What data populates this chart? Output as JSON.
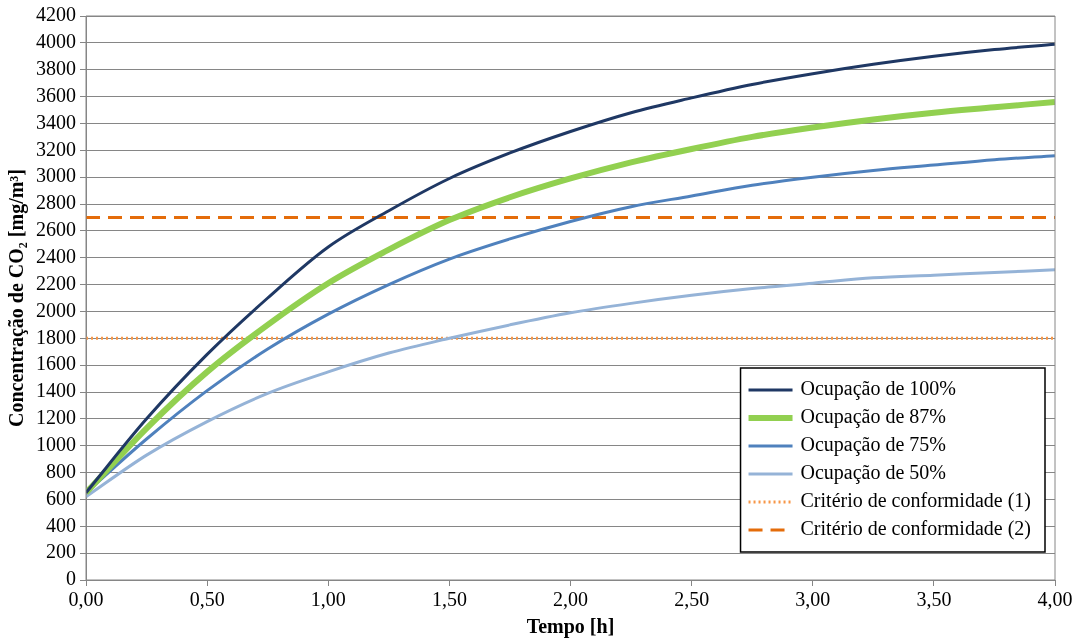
{
  "chart_data": {
    "type": "line",
    "xlabel": "Tempo [h]",
    "ylabel": "Concentração de CO₂ [mg/m³]",
    "x": [
      0,
      0.25,
      0.5,
      0.75,
      1,
      1.25,
      1.5,
      1.75,
      2,
      2.25,
      2.5,
      2.75,
      3,
      3.25,
      3.5,
      3.75,
      4
    ],
    "series": [
      {
        "name": "Ocupação de 100%",
        "color": "#1f3864",
        "values": [
          650,
          1200,
          1680,
          2100,
          2480,
          2750,
          2990,
          3180,
          3340,
          3480,
          3590,
          3690,
          3770,
          3840,
          3900,
          3950,
          3990
        ]
      },
      {
        "name": "Ocupação de 87%",
        "color": "#92d050",
        "values": [
          650,
          1130,
          1550,
          1900,
          2210,
          2460,
          2680,
          2850,
          2990,
          3110,
          3210,
          3300,
          3370,
          3430,
          3480,
          3520,
          3560
        ]
      },
      {
        "name": "Ocupação de 75%",
        "color": "#4f81bd",
        "values": [
          650,
          1050,
          1410,
          1720,
          1980,
          2200,
          2390,
          2540,
          2670,
          2780,
          2860,
          2940,
          3000,
          3050,
          3090,
          3130,
          3160
        ]
      },
      {
        "name": "Ocupação de 50%",
        "color": "#95b3d7",
        "values": [
          620,
          930,
          1180,
          1390,
          1550,
          1690,
          1800,
          1900,
          1990,
          2060,
          2120,
          2170,
          2210,
          2250,
          2270,
          2290,
          2310
        ]
      },
      {
        "name": "Critério de conformidade (1)",
        "color": "#f79646",
        "values": [
          1800,
          1800,
          1800,
          1800,
          1800,
          1800,
          1800,
          1800,
          1800,
          1800,
          1800,
          1800,
          1800,
          1800,
          1800,
          1800,
          1800
        ],
        "line_style": "dotted"
      },
      {
        "name": "Critério de conformidade (2)",
        "color": "#e46c0a",
        "values": [
          2700,
          2700,
          2700,
          2700,
          2700,
          2700,
          2700,
          2700,
          2700,
          2700,
          2700,
          2700,
          2700,
          2700,
          2700,
          2700,
          2700
        ],
        "line_style": "dashed"
      }
    ],
    "xlim": [
      0,
      4
    ],
    "xticks": [
      {
        "value": 0,
        "label": "0,00"
      },
      {
        "value": 0.5,
        "label": "0,50"
      },
      {
        "value": 1,
        "label": "1,00"
      },
      {
        "value": 1.5,
        "label": "1,50"
      },
      {
        "value": 2,
        "label": "2,00"
      },
      {
        "value": 2.5,
        "label": "2,50"
      },
      {
        "value": 3,
        "label": "3,00"
      },
      {
        "value": 3.5,
        "label": "3,50"
      },
      {
        "value": 4,
        "label": "4,00"
      }
    ],
    "ylim": [
      0,
      4200
    ],
    "yticks": [
      0,
      200,
      400,
      600,
      800,
      1000,
      1200,
      1400,
      1600,
      1800,
      2000,
      2200,
      2400,
      2600,
      2800,
      3000,
      3200,
      3400,
      3600,
      3800,
      4000,
      4200
    ],
    "grid": "y",
    "legend": "bottom right",
    "marker": "none",
    "line_style": "solid"
  }
}
